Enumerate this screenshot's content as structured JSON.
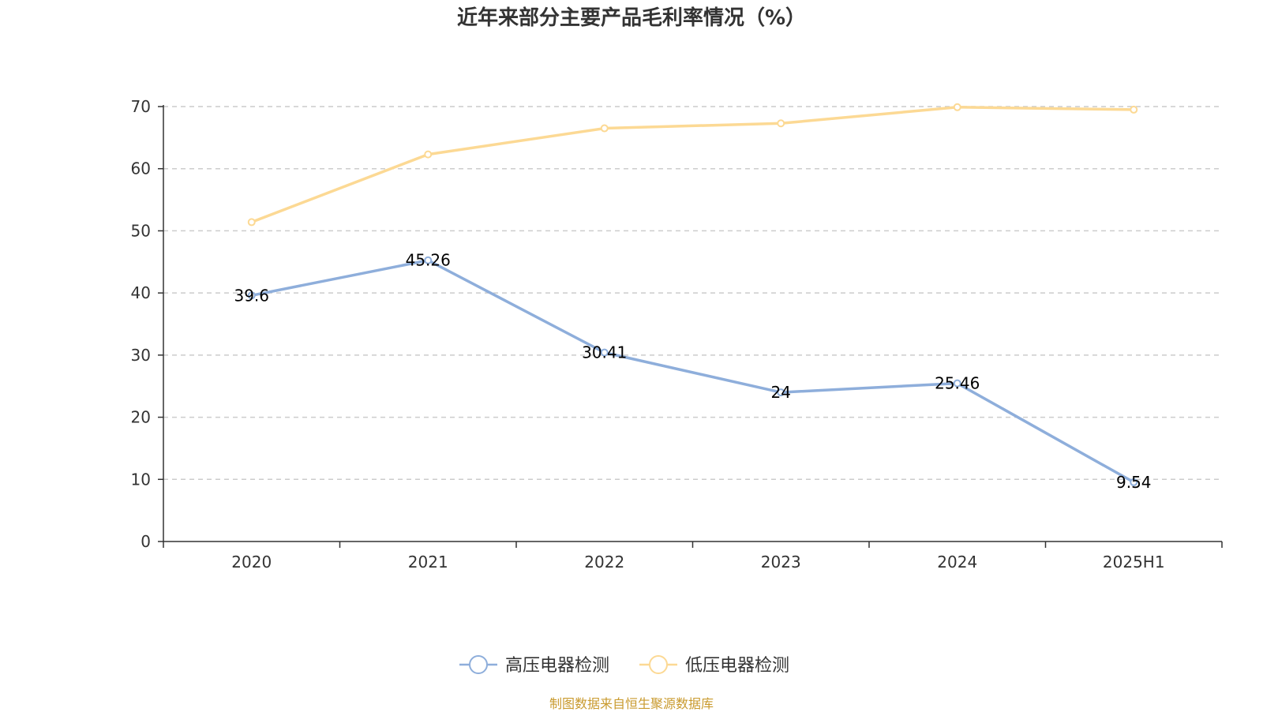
{
  "colors": {
    "series_high": "#8eaedb",
    "series_low": "#fcd994",
    "source": "#c99a2e",
    "grid": "#cccccc",
    "axis": "#333333"
  },
  "chart_data": {
    "type": "line",
    "title": "近年来部分主要产品毛利率情况（%）",
    "xlabel": "",
    "ylabel": "",
    "categories": [
      "2020",
      "2021",
      "2022",
      "2023",
      "2024",
      "2025H1"
    ],
    "ylim": [
      0,
      70
    ],
    "yticks": [
      0,
      10,
      20,
      30,
      40,
      50,
      60,
      70
    ],
    "grid": true,
    "legend_position": "bottom-center",
    "series": [
      {
        "name": "高压电器检测",
        "color": "#8eaedb",
        "values": [
          39.6,
          45.26,
          30.41,
          24,
          25.46,
          9.54
        ],
        "labels": [
          "39.6",
          "45.26",
          "30.41",
          "24",
          "25.46",
          "9.54"
        ],
        "show_labels": true
      },
      {
        "name": "低压电器检测",
        "color": "#fcd994",
        "values": [
          51.4,
          62.3,
          66.5,
          67.3,
          69.9,
          69.5
        ],
        "show_labels": false
      }
    ],
    "source_note": "制图数据来自恒生聚源数据库"
  }
}
